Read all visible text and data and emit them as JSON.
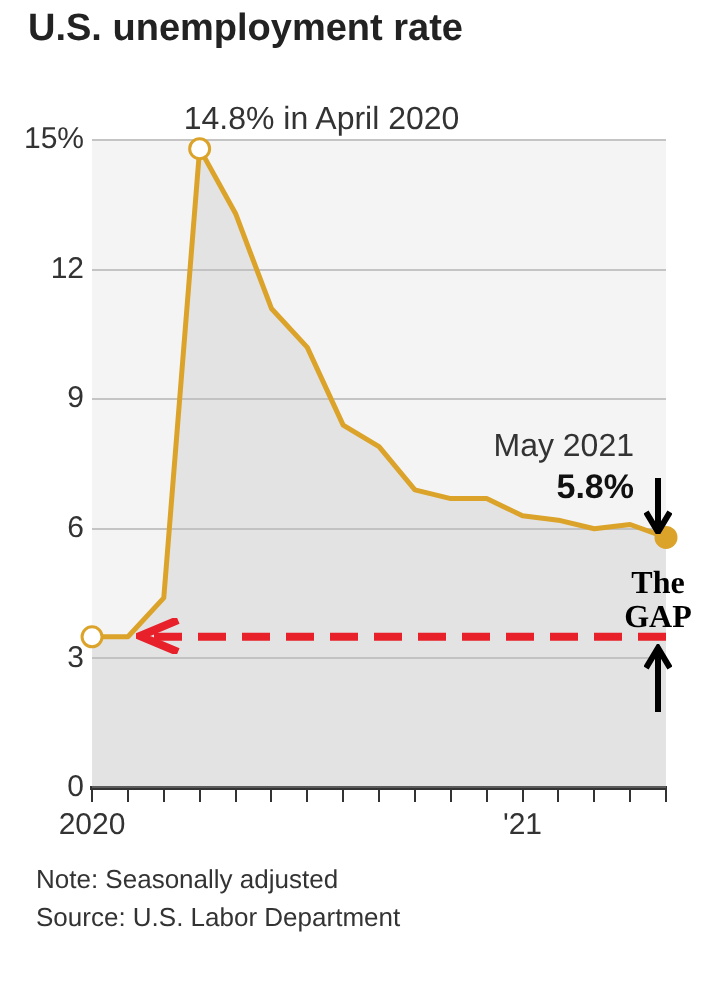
{
  "chart_data": {
    "type": "area",
    "title": "U.S. unemployment rate",
    "x": [
      "2020-01",
      "2020-02",
      "2020-03",
      "2020-04",
      "2020-05",
      "2020-06",
      "2020-07",
      "2020-08",
      "2020-09",
      "2020-10",
      "2020-11",
      "2020-12",
      "2021-01",
      "2021-02",
      "2021-03",
      "2021-04",
      "2021-05"
    ],
    "series": [
      {
        "color": "#dba32a",
        "values": [
          3.5,
          3.5,
          4.4,
          14.8,
          13.3,
          11.1,
          10.2,
          8.4,
          7.9,
          6.9,
          6.7,
          6.7,
          6.3,
          6.2,
          6.0,
          6.1,
          5.8
        ]
      }
    ],
    "xlim": [
      "2020-01",
      "2021-05"
    ],
    "xticks": [
      {
        "value": "2020-01",
        "label": "2020"
      },
      {
        "value": "2020-02",
        "label": null
      },
      {
        "value": "2020-03",
        "label": null
      },
      {
        "value": "2020-04",
        "label": null
      },
      {
        "value": "2020-05",
        "label": null
      },
      {
        "value": "2020-06",
        "label": null
      },
      {
        "value": "2020-07",
        "label": null
      },
      {
        "value": "2020-08",
        "label": null
      },
      {
        "value": "2020-09",
        "label": null
      },
      {
        "value": "2020-10",
        "label": null
      },
      {
        "value": "2020-11",
        "label": null
      },
      {
        "value": "2020-12",
        "label": null
      },
      {
        "value": "2021-01",
        "label": "'21"
      },
      {
        "value": "2021-02",
        "label": null
      },
      {
        "value": "2021-03",
        "label": null
      },
      {
        "value": "2021-04",
        "label": null
      },
      {
        "value": "2021-05",
        "label": null
      }
    ],
    "ylim": [
      0,
      15
    ],
    "yticks": [
      0,
      3,
      6,
      9,
      12,
      {
        "value": 15,
        "label": "15%"
      }
    ],
    "grid": "y",
    "legend": false,
    "ref_lines": [
      {
        "axis": "y",
        "value": 3.5,
        "label": "The GAP",
        "color": "#e8202a",
        "line_style": "dashed"
      }
    ],
    "annotations": [
      {
        "text": "14.8% in April 2020",
        "x": "2020-04",
        "y": 14.8
      },
      {
        "text": "May 2021",
        "x": "2021-05",
        "y": 5.8
      },
      {
        "text": "5.8%",
        "x": "2021-05",
        "y": 5.8
      },
      "Note: Seasonally adjusted",
      "Source: U.S. Labor Department"
    ]
  }
}
